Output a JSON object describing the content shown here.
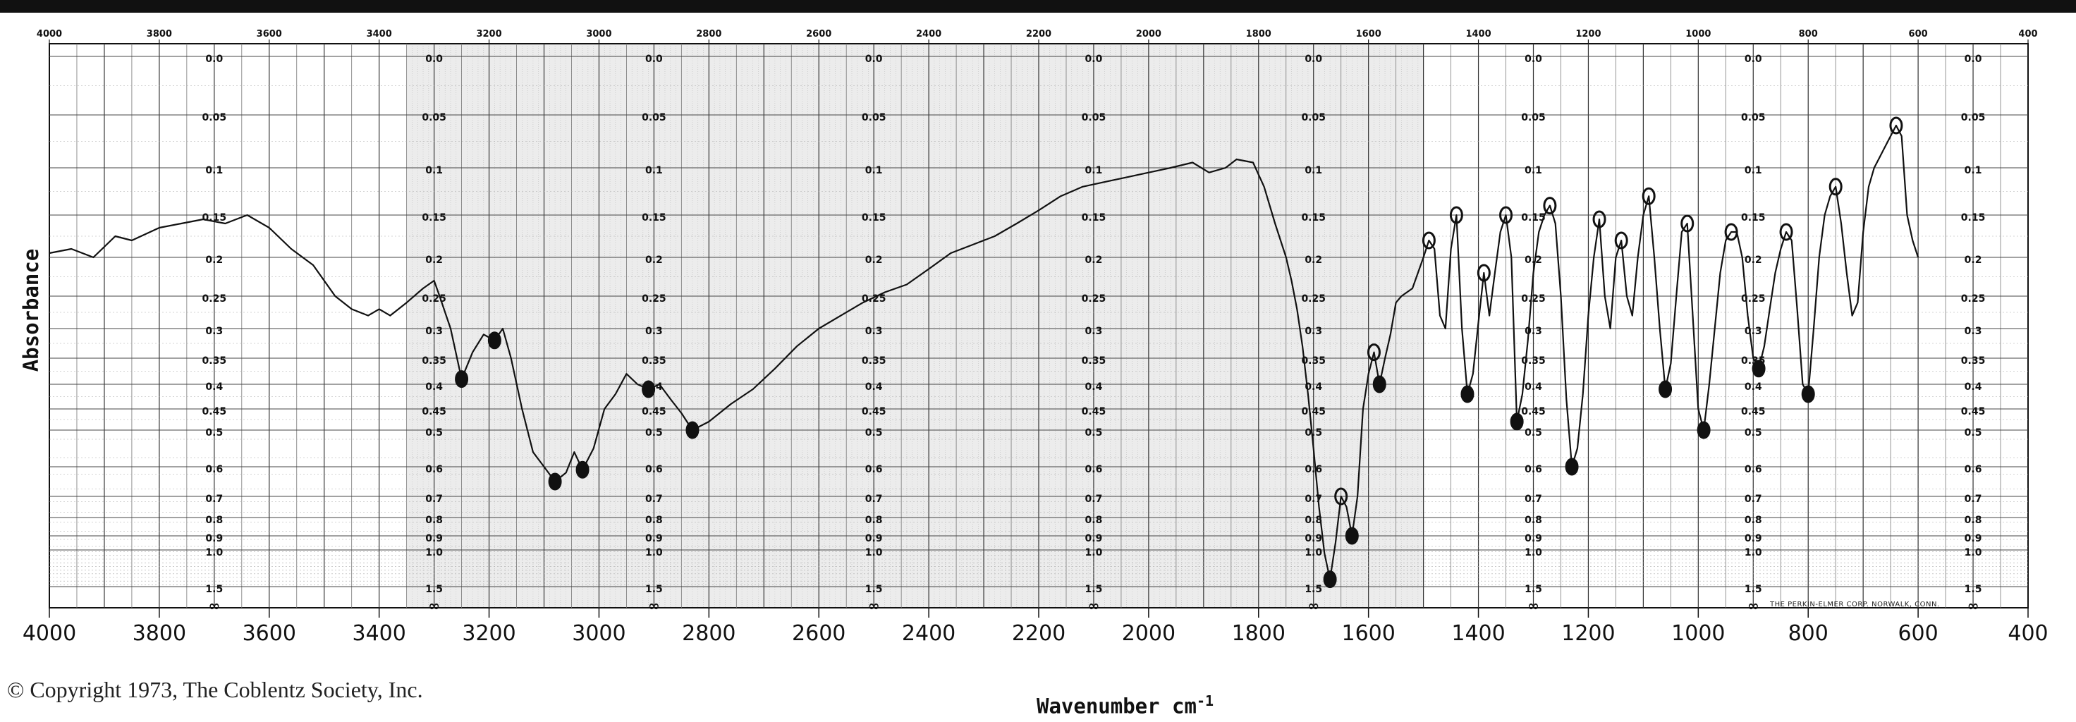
{
  "copyright": "© Copyright 1973, The Coblentz Society, Inc.",
  "manufacturer_note": "THE PERKIN-ELMER CORP. NORWALK, CONN.",
  "chart_data": {
    "type": "line",
    "title": "",
    "xlabel": "Wavenumber cm",
    "xlabel_superscript": "-1",
    "ylabel": "Absorbance",
    "x_reversed": true,
    "xlim": [
      4000,
      400
    ],
    "ylim": [
      0.0,
      "∞"
    ],
    "bottom_ticks": [
      "4000",
      "3800",
      "3600",
      "3400",
      "3200",
      "3000",
      "2800",
      "2600",
      "2400",
      "2200",
      "2000",
      "1800",
      "1600",
      "1400",
      "1200",
      "1000",
      "800",
      "600",
      "400"
    ],
    "top_ticks": [
      "4000",
      "3800",
      "3600",
      "3400",
      "3200",
      "3000",
      "2800",
      "2600",
      "2400",
      "2200",
      "2000",
      "1800",
      "1600",
      "1400",
      "1200",
      "1000",
      "800",
      "600",
      "400"
    ],
    "absorbance_scale_labels": [
      "0.0",
      "0.05",
      "0.1",
      "0.15",
      "0.2",
      "0.25",
      "0.3",
      "0.35",
      "0.4",
      "0.45",
      "0.5",
      "0.6",
      "0.7",
      "0.8",
      "0.9",
      "1.0",
      "1.5",
      "∞"
    ],
    "absorbance_scale_positions_cm1": [
      3700,
      3300,
      2900,
      2500,
      2100,
      1700,
      1300,
      900,
      500
    ],
    "line_color": "#111111",
    "grid": true,
    "series": [
      {
        "x": [
          4000,
          3960,
          3920,
          3880,
          3850,
          3800,
          3760,
          3720,
          3680,
          3640,
          3600,
          3560,
          3520,
          3480,
          3450,
          3420,
          3400,
          3380,
          3350,
          3320,
          3300,
          3290,
          3270,
          3250,
          3230,
          3210,
          3190,
          3175,
          3160,
          3140,
          3120,
          3100,
          3080,
          3060,
          3045,
          3030,
          3010,
          2990,
          2970,
          2950,
          2930,
          2910,
          2890,
          2870,
          2850,
          2830,
          2800,
          2760,
          2720,
          2680,
          2640,
          2600,
          2560,
          2520,
          2480,
          2440,
          2400,
          2360,
          2320,
          2280,
          2240,
          2200,
          2160,
          2120,
          2080,
          2040,
          2000,
          1960,
          1920,
          1890,
          1860,
          1840,
          1810,
          1790,
          1770,
          1750,
          1740,
          1730,
          1720,
          1710,
          1700,
          1690,
          1680,
          1670,
          1660,
          1650,
          1640,
          1630,
          1620,
          1610,
          1600,
          1590,
          1580,
          1570,
          1560,
          1550,
          1540,
          1520,
          1500,
          1490,
          1480,
          1470,
          1460,
          1450,
          1440,
          1430,
          1420,
          1410,
          1400,
          1390,
          1380,
          1370,
          1360,
          1350,
          1340,
          1330,
          1320,
          1310,
          1300,
          1290,
          1280,
          1270,
          1260,
          1250,
          1240,
          1230,
          1220,
          1210,
          1200,
          1190,
          1180,
          1170,
          1160,
          1150,
          1140,
          1130,
          1120,
          1110,
          1100,
          1090,
          1080,
          1070,
          1060,
          1050,
          1040,
          1030,
          1020,
          1010,
          1000,
          990,
          980,
          970,
          960,
          950,
          940,
          930,
          920,
          910,
          900,
          890,
          880,
          870,
          860,
          850,
          840,
          830,
          820,
          810,
          800,
          790,
          780,
          770,
          760,
          750,
          740,
          730,
          720,
          710,
          700,
          690,
          680,
          670,
          660,
          650,
          640,
          630,
          620,
          610,
          600
        ],
        "y": [
          0.195,
          0.19,
          0.2,
          0.175,
          0.18,
          0.165,
          0.16,
          0.155,
          0.16,
          0.15,
          0.165,
          0.19,
          0.21,
          0.25,
          0.27,
          0.28,
          0.27,
          0.28,
          0.26,
          0.24,
          0.23,
          0.25,
          0.3,
          0.39,
          0.34,
          0.31,
          0.32,
          0.3,
          0.35,
          0.45,
          0.56,
          0.6,
          0.65,
          0.62,
          0.56,
          0.61,
          0.55,
          0.45,
          0.42,
          0.38,
          0.4,
          0.41,
          0.4,
          0.43,
          0.46,
          0.5,
          0.48,
          0.44,
          0.41,
          0.37,
          0.33,
          0.3,
          0.28,
          0.26,
          0.245,
          0.235,
          0.215,
          0.195,
          0.185,
          0.175,
          0.16,
          0.145,
          0.13,
          0.12,
          0.115,
          0.11,
          0.105,
          0.1,
          0.095,
          0.105,
          0.1,
          0.092,
          0.095,
          0.12,
          0.16,
          0.2,
          0.23,
          0.27,
          0.33,
          0.42,
          0.55,
          0.75,
          1.05,
          1.4,
          0.95,
          0.7,
          0.75,
          0.9,
          0.7,
          0.45,
          0.38,
          0.34,
          0.4,
          0.35,
          0.31,
          0.26,
          0.25,
          0.24,
          0.2,
          0.18,
          0.19,
          0.28,
          0.3,
          0.19,
          0.15,
          0.3,
          0.42,
          0.38,
          0.29,
          0.22,
          0.28,
          0.22,
          0.17,
          0.15,
          0.2,
          0.48,
          0.42,
          0.32,
          0.22,
          0.17,
          0.15,
          0.14,
          0.16,
          0.25,
          0.43,
          0.6,
          0.55,
          0.42,
          0.28,
          0.2,
          0.155,
          0.25,
          0.3,
          0.2,
          0.18,
          0.25,
          0.28,
          0.2,
          0.15,
          0.13,
          0.2,
          0.3,
          0.41,
          0.36,
          0.25,
          0.17,
          0.16,
          0.28,
          0.45,
          0.5,
          0.4,
          0.3,
          0.22,
          0.18,
          0.17,
          0.17,
          0.2,
          0.28,
          0.35,
          0.37,
          0.33,
          0.27,
          0.22,
          0.19,
          0.17,
          0.18,
          0.27,
          0.4,
          0.42,
          0.3,
          0.2,
          0.15,
          0.13,
          0.12,
          0.16,
          0.22,
          0.28,
          0.26,
          0.17,
          0.12,
          0.1,
          0.09,
          0.08,
          0.07,
          0.06,
          0.07,
          0.15,
          0.18,
          0.2
        ]
      }
    ],
    "annotations": "hand-drawn peak circles and tick marks throughout spectrum"
  }
}
